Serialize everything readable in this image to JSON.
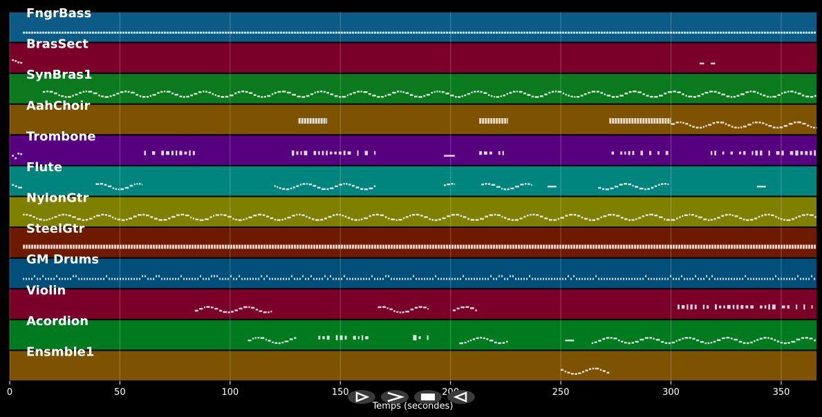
{
  "axis": {
    "xlabel": "Temps (secondes)",
    "xmin": 0,
    "xmax": 366,
    "ticks": [
      0,
      50,
      100,
      150,
      200,
      250,
      300,
      350
    ]
  },
  "tracks": [
    {
      "name": "FngrBass",
      "color": "#0b5b86",
      "notes": [
        [
          6,
          366,
          "dense"
        ]
      ]
    },
    {
      "name": "BrasSect",
      "color": "#7a0029",
      "notes": [
        [
          1,
          6,
          "burst"
        ],
        [
          313,
          315,
          "dash"
        ],
        [
          318,
          320,
          "dash"
        ]
      ]
    },
    {
      "name": "SynBras1",
      "color": "#0b7a1e",
      "notes": [
        [
          15,
          366,
          "wave"
        ]
      ]
    },
    {
      "name": "AahChoir",
      "color": "#7d5200",
      "notes": [
        [
          131,
          144,
          "block"
        ],
        [
          213,
          226,
          "block"
        ],
        [
          272,
          300,
          "block"
        ],
        [
          300,
          366,
          "wave"
        ]
      ]
    },
    {
      "name": "Trombone",
      "color": "#57007f",
      "notes": [
        [
          1,
          6,
          "burst"
        ],
        [
          61,
          84,
          "sparse"
        ],
        [
          128,
          166,
          "sparse"
        ],
        [
          197,
          202,
          "dash"
        ],
        [
          213,
          225,
          "sparse"
        ],
        [
          273,
          299,
          "sparse"
        ],
        [
          318,
          366,
          "sparse"
        ]
      ]
    },
    {
      "name": "Flute",
      "color": "#00847e",
      "notes": [
        [
          1,
          6,
          "wave"
        ],
        [
          39,
          60,
          "wave"
        ],
        [
          120,
          166,
          "wave"
        ],
        [
          197,
          202,
          "wave"
        ],
        [
          214,
          237,
          "wave"
        ],
        [
          244,
          248,
          "dash"
        ],
        [
          267,
          299,
          "wave"
        ],
        [
          339,
          343,
          "dash"
        ]
      ]
    },
    {
      "name": "NylonGtr",
      "color": "#7f7f00",
      "notes": [
        [
          6,
          366,
          "wave"
        ]
      ]
    },
    {
      "name": "SteelGtr",
      "color": "#6e1a00",
      "notes": [
        [
          6,
          366,
          "dense"
        ]
      ]
    },
    {
      "name": "GM Drums",
      "color": "#004f7a",
      "notes": [
        [
          6,
          366,
          "drums"
        ]
      ]
    },
    {
      "name": "Violin",
      "color": "#7a0029",
      "notes": [
        [
          84,
          119,
          "wave"
        ],
        [
          167,
          190,
          "wave"
        ],
        [
          201,
          212,
          "wave"
        ],
        [
          303,
          366,
          "sparse"
        ]
      ]
    },
    {
      "name": "Acordion",
      "color": "#007a1e",
      "notes": [
        [
          108,
          130,
          "wave"
        ],
        [
          140,
          165,
          "sparse"
        ],
        [
          183,
          190,
          "sparse"
        ],
        [
          204,
          226,
          "wave"
        ],
        [
          252,
          256,
          "dash"
        ],
        [
          264,
          366,
          "wave"
        ]
      ]
    },
    {
      "name": "Ensmble1",
      "color": "#7d5200",
      "notes": [
        [
          250,
          272,
          "wave"
        ]
      ]
    }
  ],
  "controls": [
    {
      "name": "play-button",
      "glyph": "play"
    },
    {
      "name": "forward-button",
      "glyph": "forward"
    },
    {
      "name": "stop-button",
      "glyph": "stop"
    },
    {
      "name": "rewind-button",
      "glyph": "rewind"
    }
  ]
}
